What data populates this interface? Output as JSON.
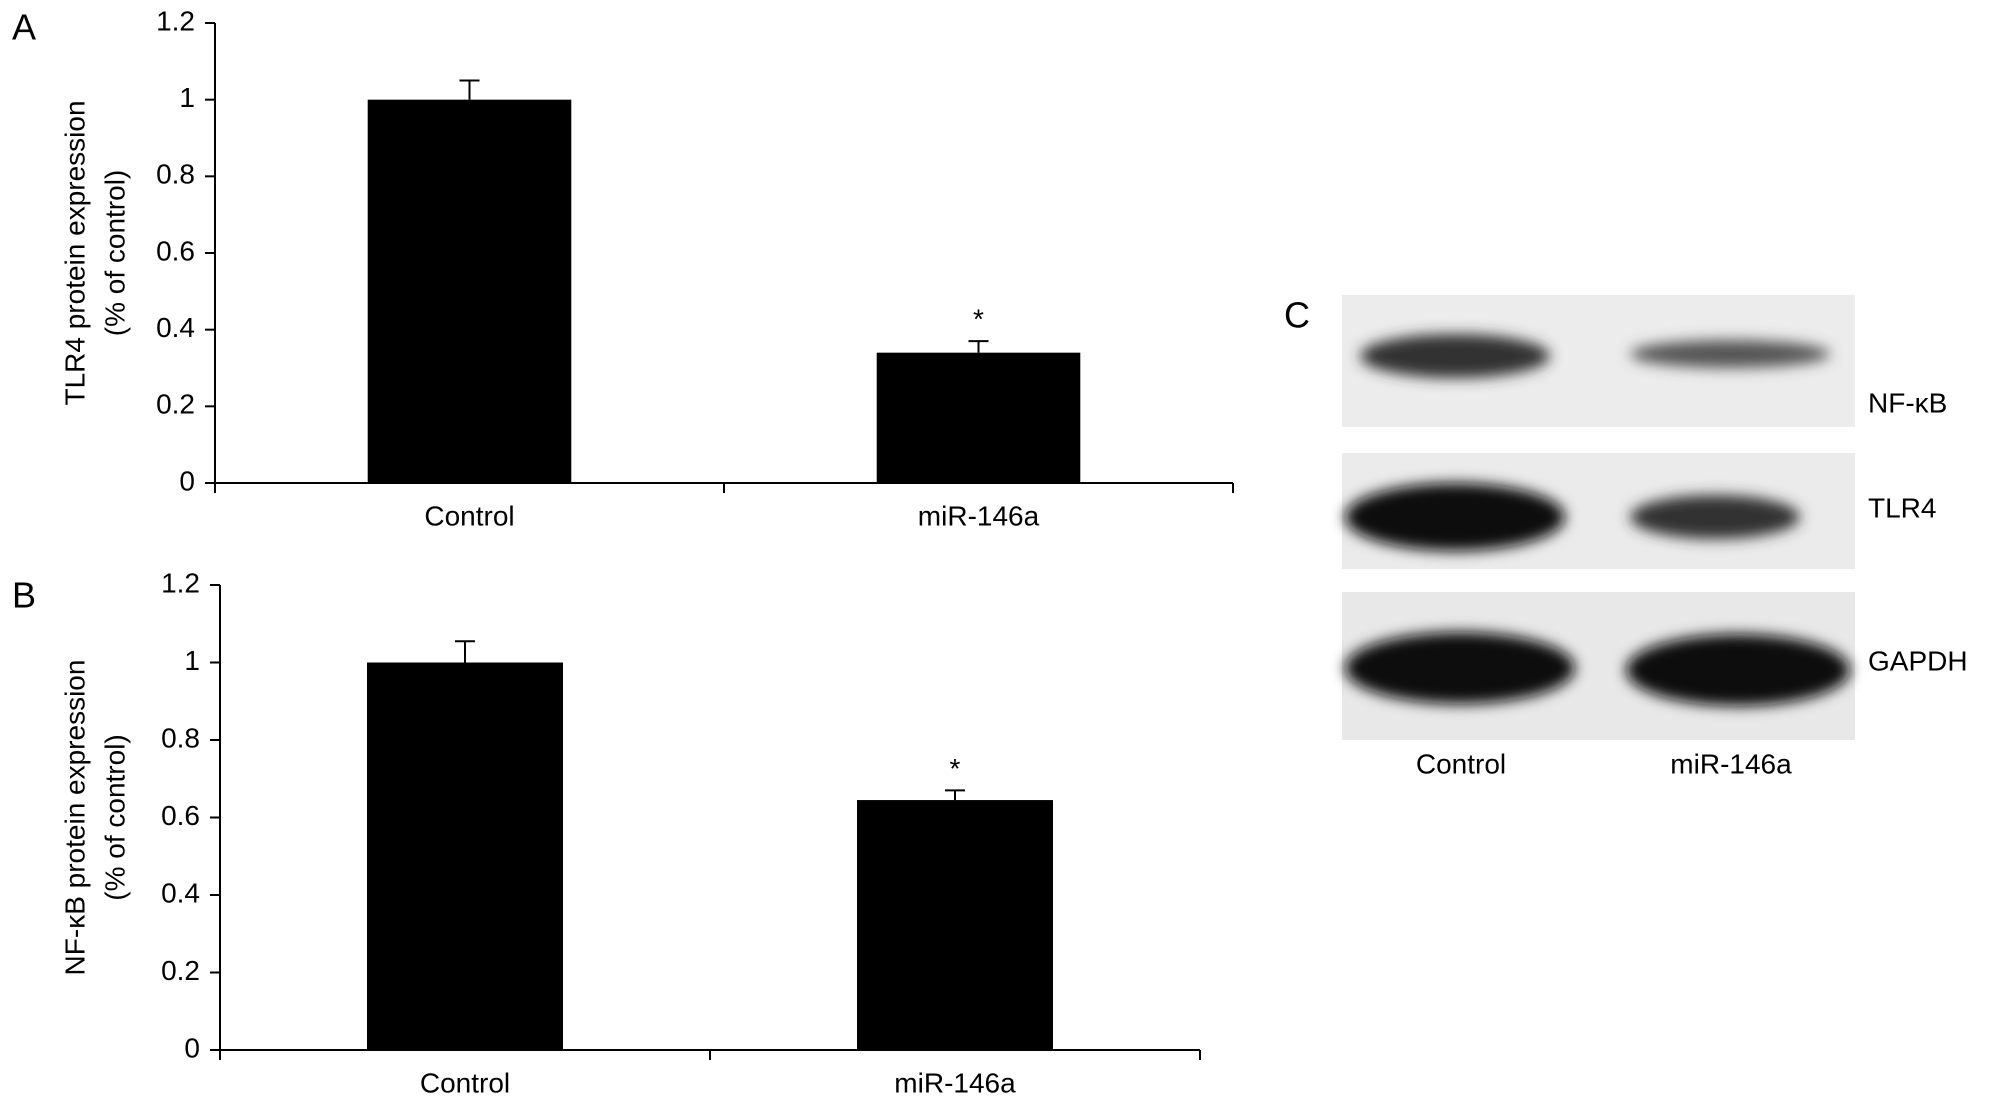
{
  "chart_data": [
    {
      "type": "bar",
      "panel": "A",
      "ylabel": [
        "TLR4 protein expression",
        "(% of control)"
      ],
      "categories": [
        "Control",
        "miR-146a"
      ],
      "values": [
        1.0,
        0.34
      ],
      "errors": [
        0.05,
        0.03
      ],
      "value_annotations": [
        null,
        "*"
      ],
      "color": "#000000",
      "ylim": [
        0,
        1.2
      ],
      "yticks": [
        0,
        0.2,
        0.4,
        0.6,
        0.8,
        1,
        1.2
      ]
    },
    {
      "type": "bar",
      "panel": "B",
      "ylabel": [
        "NF-κB protein expression",
        "(% of control)"
      ],
      "categories": [
        "Control",
        "miR-146a"
      ],
      "values": [
        1.0,
        0.645
      ],
      "errors": [
        0.055,
        0.025
      ],
      "value_annotations": [
        null,
        "*"
      ],
      "color": "#000000",
      "ylim": [
        0,
        1.2
      ],
      "yticks": [
        0,
        0.2,
        0.4,
        0.6,
        0.8,
        1,
        1.2
      ]
    }
  ],
  "blot": {
    "panel": "C",
    "rows": [
      "NF-κB",
      "TLR4",
      "GAPDH"
    ],
    "lanes": [
      "Control",
      "miR-146a"
    ]
  }
}
